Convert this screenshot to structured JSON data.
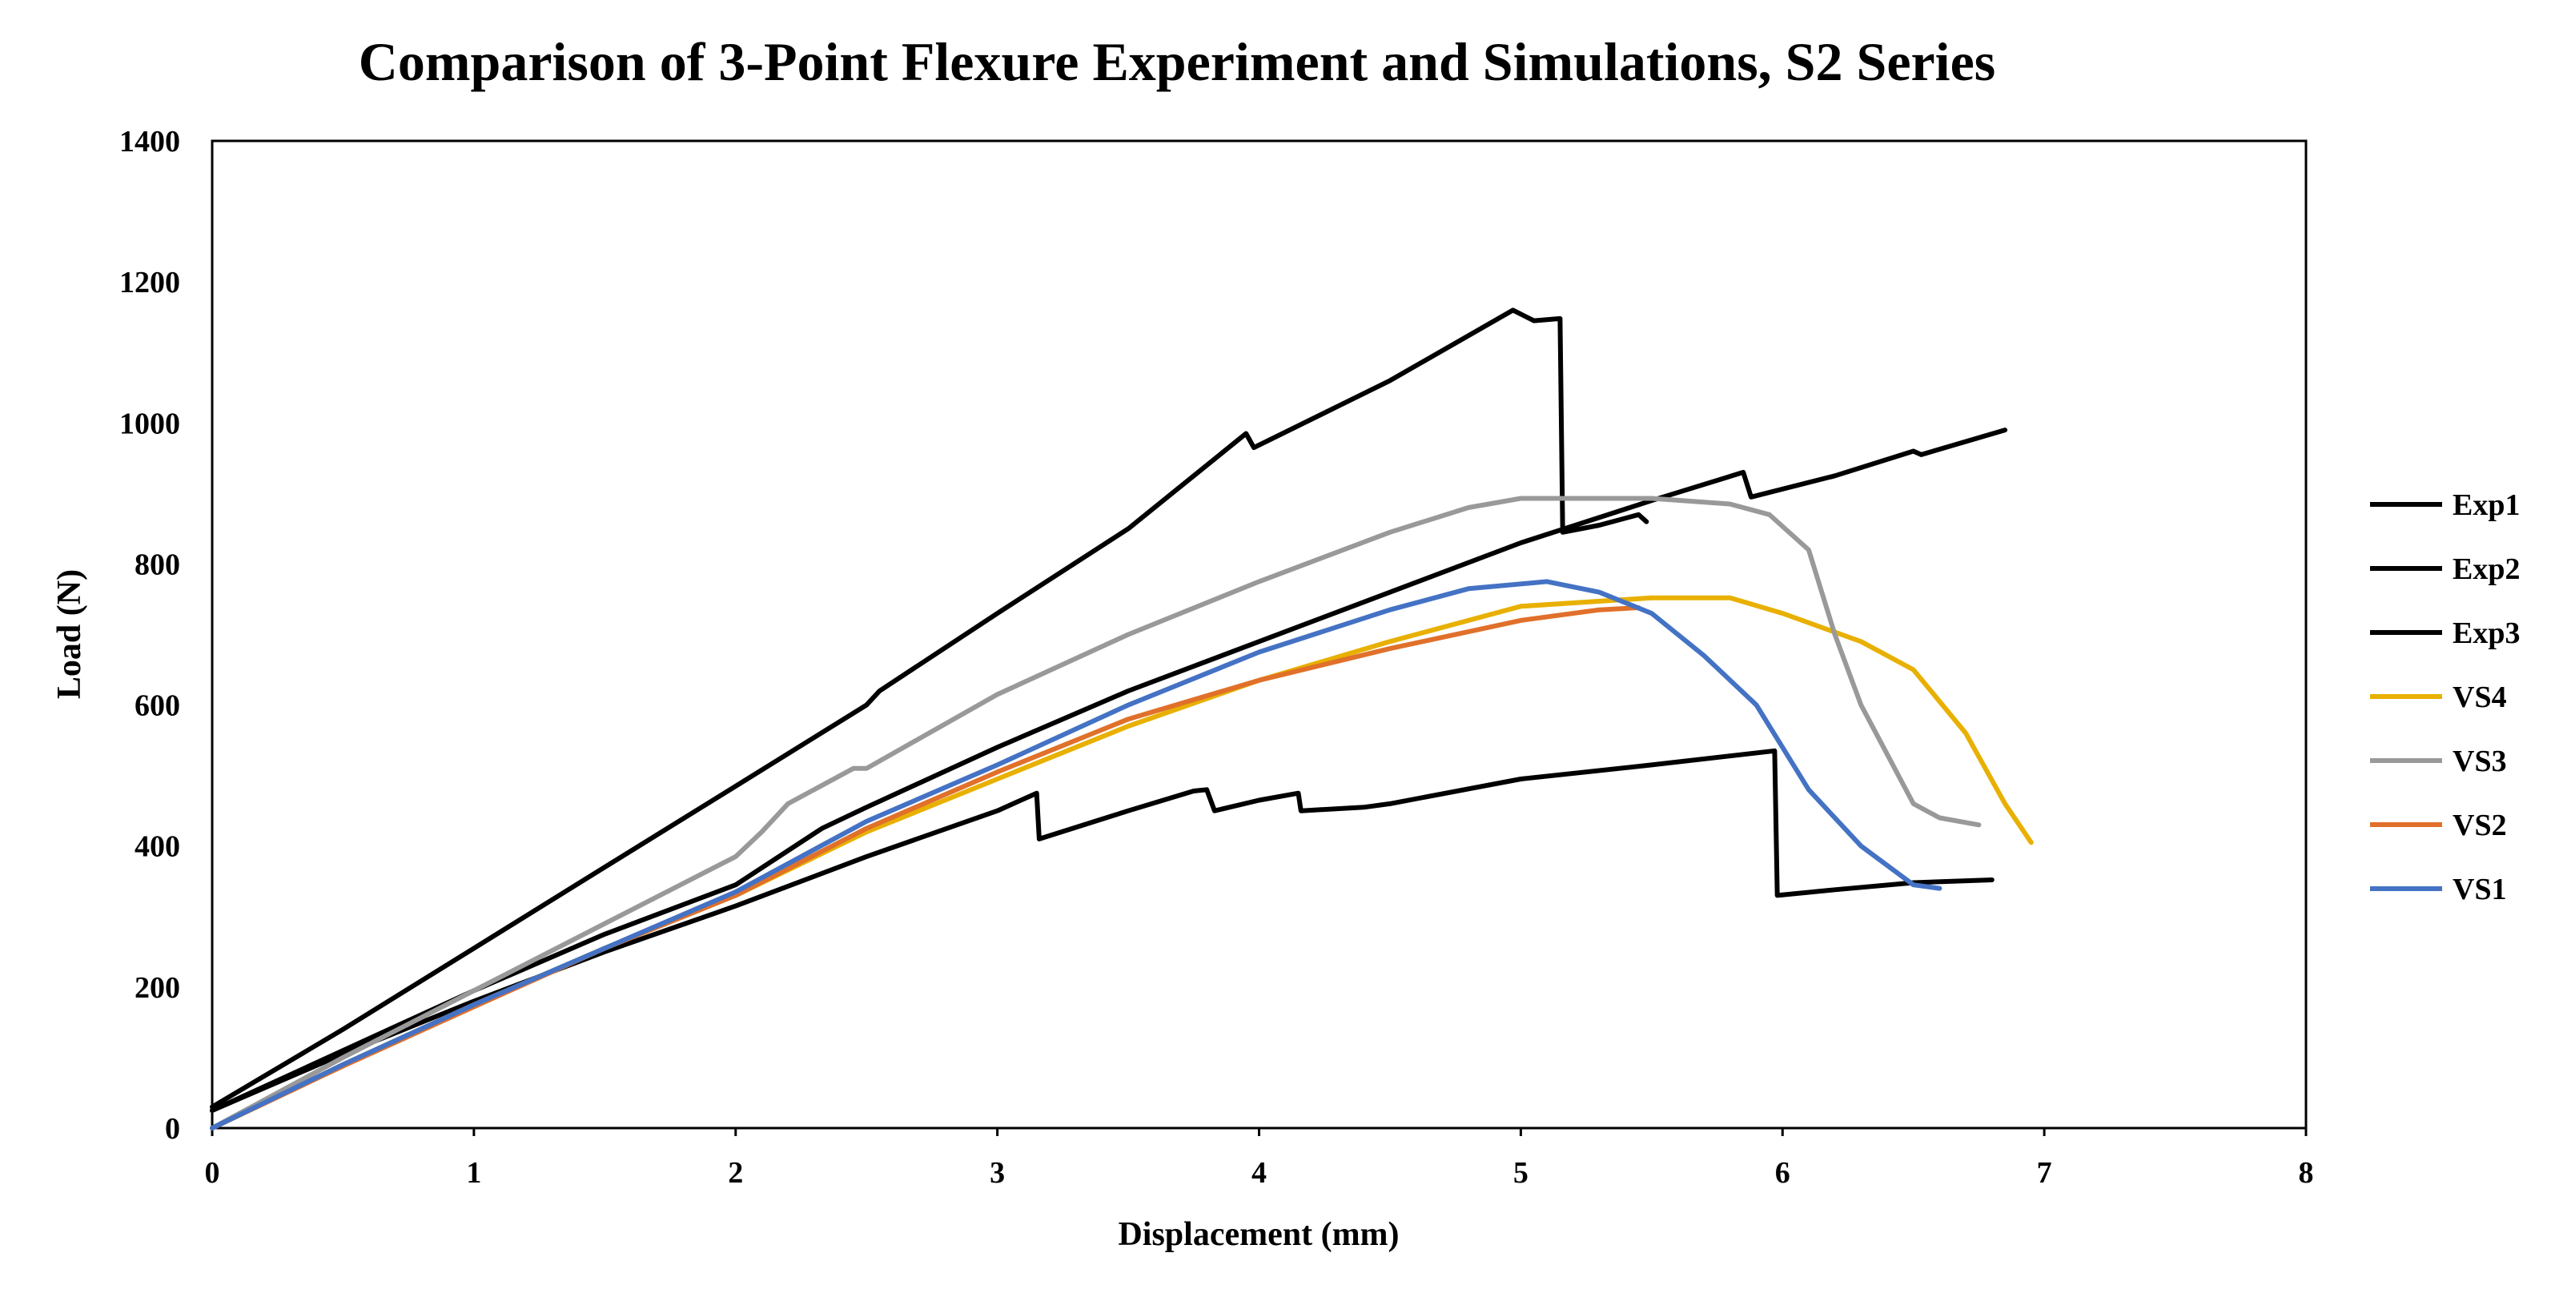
{
  "chart_data": {
    "type": "line",
    "title": "Comparison of 3-Point Flexure Experiment and Simulations, S2 Series",
    "xlabel": "Displacement (mm)",
    "ylabel": "Load (N)",
    "xlim": [
      0,
      8
    ],
    "ylim": [
      0,
      1400
    ],
    "xticks": [
      "0",
      "1",
      "2",
      "3",
      "4",
      "5",
      "6",
      "7",
      "8"
    ],
    "yticks": [
      "0",
      "200",
      "400",
      "600",
      "800",
      "1000",
      "1200",
      "1400"
    ],
    "grid": false,
    "legend_position": "right",
    "series": [
      {
        "name": "Exp1",
        "color": "#000000",
        "points": [
          [
            0,
            30
          ],
          [
            0.5,
            140
          ],
          [
            1,
            255
          ],
          [
            1.5,
            370
          ],
          [
            2,
            485
          ],
          [
            2.5,
            600
          ],
          [
            2.55,
            620
          ],
          [
            3,
            730
          ],
          [
            3.5,
            850
          ],
          [
            3.95,
            985
          ],
          [
            3.98,
            965
          ],
          [
            4.5,
            1060
          ],
          [
            4.97,
            1160
          ],
          [
            5.05,
            1145
          ],
          [
            5.15,
            1148
          ],
          [
            5.16,
            845
          ],
          [
            5.3,
            855
          ],
          [
            5.45,
            870
          ],
          [
            5.48,
            860
          ]
        ]
      },
      {
        "name": "Exp2",
        "color": "#000000",
        "points": [
          [
            0,
            25
          ],
          [
            0.5,
            110
          ],
          [
            1,
            195
          ],
          [
            1.5,
            275
          ],
          [
            2,
            345
          ],
          [
            2.33,
            425
          ],
          [
            2.5,
            455
          ],
          [
            3,
            540
          ],
          [
            3.5,
            620
          ],
          [
            4,
            690
          ],
          [
            4.5,
            760
          ],
          [
            5,
            830
          ],
          [
            5.5,
            890
          ],
          [
            5.85,
            930
          ],
          [
            5.88,
            895
          ],
          [
            6.2,
            925
          ],
          [
            6.5,
            960
          ],
          [
            6.53,
            955
          ],
          [
            6.85,
            990
          ]
        ]
      },
      {
        "name": "Exp3",
        "color": "#000000",
        "points": [
          [
            0,
            25
          ],
          [
            0.5,
            105
          ],
          [
            1,
            180
          ],
          [
            1.5,
            250
          ],
          [
            2,
            315
          ],
          [
            2.5,
            385
          ],
          [
            3,
            450
          ],
          [
            3.15,
            475
          ],
          [
            3.16,
            410
          ],
          [
            3.5,
            450
          ],
          [
            3.75,
            478
          ],
          [
            3.8,
            480
          ],
          [
            3.83,
            450
          ],
          [
            4,
            465
          ],
          [
            4.15,
            475
          ],
          [
            4.16,
            450
          ],
          [
            4.4,
            455
          ],
          [
            4.5,
            460
          ],
          [
            5,
            495
          ],
          [
            5.5,
            515
          ],
          [
            5.97,
            535
          ],
          [
            5.98,
            330
          ],
          [
            6.2,
            338
          ],
          [
            6.5,
            348
          ],
          [
            6.8,
            352
          ]
        ]
      },
      {
        "name": "VS4",
        "color": "#E8B000",
        "points": [
          [
            0,
            0
          ],
          [
            0.5,
            90
          ],
          [
            1,
            175
          ],
          [
            1.5,
            255
          ],
          [
            2,
            330
          ],
          [
            2.5,
            420
          ],
          [
            3,
            495
          ],
          [
            3.5,
            570
          ],
          [
            4,
            635
          ],
          [
            4.5,
            690
          ],
          [
            5,
            740
          ],
          [
            5.5,
            752
          ],
          [
            5.8,
            752
          ],
          [
            6,
            730
          ],
          [
            6.3,
            690
          ],
          [
            6.5,
            650
          ],
          [
            6.7,
            560
          ],
          [
            6.85,
            460
          ],
          [
            6.95,
            405
          ]
        ]
      },
      {
        "name": "VS3",
        "color": "#999999",
        "points": [
          [
            0,
            0
          ],
          [
            0.5,
            100
          ],
          [
            1,
            195
          ],
          [
            1.5,
            290
          ],
          [
            2,
            385
          ],
          [
            2.1,
            420
          ],
          [
            2.2,
            460
          ],
          [
            2.45,
            510
          ],
          [
            2.5,
            510
          ],
          [
            3,
            615
          ],
          [
            3.5,
            700
          ],
          [
            4,
            775
          ],
          [
            4.5,
            845
          ],
          [
            4.8,
            880
          ],
          [
            5,
            893
          ],
          [
            5.5,
            893
          ],
          [
            5.8,
            885
          ],
          [
            5.95,
            870
          ],
          [
            6.1,
            820
          ],
          [
            6.2,
            700
          ],
          [
            6.3,
            600
          ],
          [
            6.4,
            530
          ],
          [
            6.5,
            460
          ],
          [
            6.6,
            440
          ],
          [
            6.75,
            430
          ]
        ]
      },
      {
        "name": "VS2",
        "color": "#E0702A",
        "points": [
          [
            0,
            0
          ],
          [
            0.5,
            88
          ],
          [
            1,
            172
          ],
          [
            1.5,
            255
          ],
          [
            2,
            330
          ],
          [
            2.5,
            425
          ],
          [
            3,
            505
          ],
          [
            3.5,
            580
          ],
          [
            4,
            635
          ],
          [
            4.5,
            680
          ],
          [
            5,
            720
          ],
          [
            5.3,
            735
          ],
          [
            5.45,
            738
          ]
        ]
      },
      {
        "name": "VS1",
        "color": "#4472C4",
        "points": [
          [
            0,
            0
          ],
          [
            0.5,
            90
          ],
          [
            1,
            175
          ],
          [
            1.5,
            255
          ],
          [
            2,
            335
          ],
          [
            2.5,
            435
          ],
          [
            3,
            515
          ],
          [
            3.5,
            600
          ],
          [
            4,
            675
          ],
          [
            4.5,
            735
          ],
          [
            4.8,
            765
          ],
          [
            5.1,
            775
          ],
          [
            5.3,
            760
          ],
          [
            5.5,
            730
          ],
          [
            5.7,
            670
          ],
          [
            5.9,
            600
          ],
          [
            6.1,
            480
          ],
          [
            6.3,
            400
          ],
          [
            6.5,
            345
          ],
          [
            6.6,
            340
          ]
        ]
      }
    ]
  }
}
